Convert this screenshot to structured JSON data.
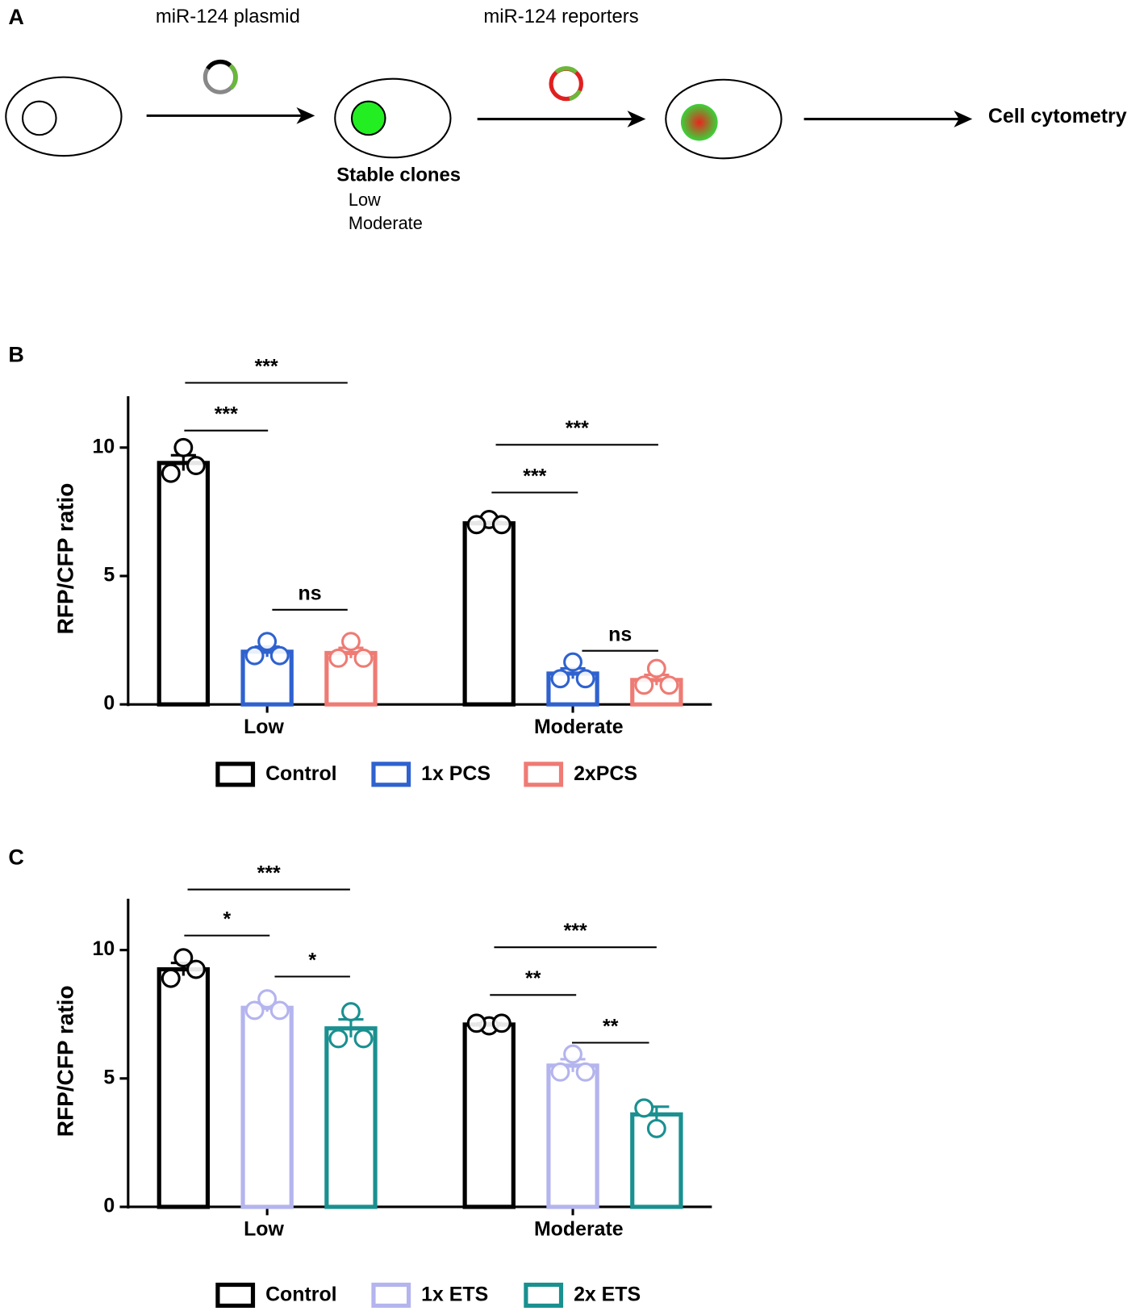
{
  "panel_a": {
    "label": "A",
    "step1": "miR-124 plasmid",
    "step2": "miR-124 reporters",
    "clones_title": "Stable clones",
    "clones": [
      "Low",
      "Moderate"
    ],
    "result": "Cell cytometry"
  },
  "chart_data": [
    {
      "type": "bar",
      "panel": "B",
      "ylabel": "RFP/CFP ratio",
      "categories": [
        "Low",
        "Moderate"
      ],
      "ylim": [
        0,
        12
      ],
      "yticks": [
        0,
        5,
        10
      ],
      "series": [
        {
          "name": "Control",
          "color": "#000000",
          "values": [
            9.4,
            7.05
          ],
          "errors": [
            0.3,
            0.05
          ],
          "points": [
            [
              10.0,
              9.0,
              9.3
            ],
            [
              7.2,
              7.0,
              7.0
            ]
          ]
        },
        {
          "name": "1x PCS",
          "color": "#2f62cf",
          "values": [
            2.05,
            1.2
          ],
          "errors": [
            0.2,
            0.2
          ],
          "points": [
            [
              2.45,
              1.9,
              1.9
            ],
            [
              1.65,
              1.0,
              1.0
            ]
          ]
        },
        {
          "name": "2xPCS",
          "color": "#ee7b74",
          "values": [
            2.0,
            0.95
          ],
          "errors": [
            0.2,
            0.2
          ],
          "points": [
            [
              2.45,
              1.8,
              1.8
            ],
            [
              1.4,
              0.75,
              0.75
            ]
          ]
        }
      ],
      "annotations": [
        "***",
        "***",
        "ns",
        "***",
        "***",
        "ns"
      ]
    },
    {
      "type": "bar",
      "panel": "C",
      "ylabel": "RFP/CFP ratio",
      "categories": [
        "Low",
        "Moderate"
      ],
      "ylim": [
        0,
        12
      ],
      "yticks": [
        0,
        5,
        10
      ],
      "series": [
        {
          "name": "Control",
          "color": "#000000",
          "values": [
            9.25,
            7.1
          ],
          "errors": [
            0.25,
            0.05
          ],
          "points": [
            [
              9.7,
              8.9,
              9.25
            ],
            [
              7.05,
              7.15,
              7.15
            ]
          ]
        },
        {
          "name": "1x ETS",
          "color": "#b4b4ee",
          "values": [
            7.75,
            5.5
          ],
          "errors": [
            0.15,
            0.25
          ],
          "points": [
            [
              8.1,
              7.65,
              7.65
            ],
            [
              5.95,
              5.25,
              5.25
            ]
          ]
        },
        {
          "name": "2x ETS",
          "color": "#1a9090",
          "values": [
            6.95,
            3.6
          ],
          "errors": [
            0.35,
            0.3
          ],
          "points": [
            [
              7.6,
              6.55,
              6.55
            ],
            [
              3.85,
              3.85,
              3.05
            ]
          ]
        }
      ],
      "annotations": [
        "***",
        "*",
        "*",
        "***",
        "**",
        "**"
      ]
    }
  ]
}
